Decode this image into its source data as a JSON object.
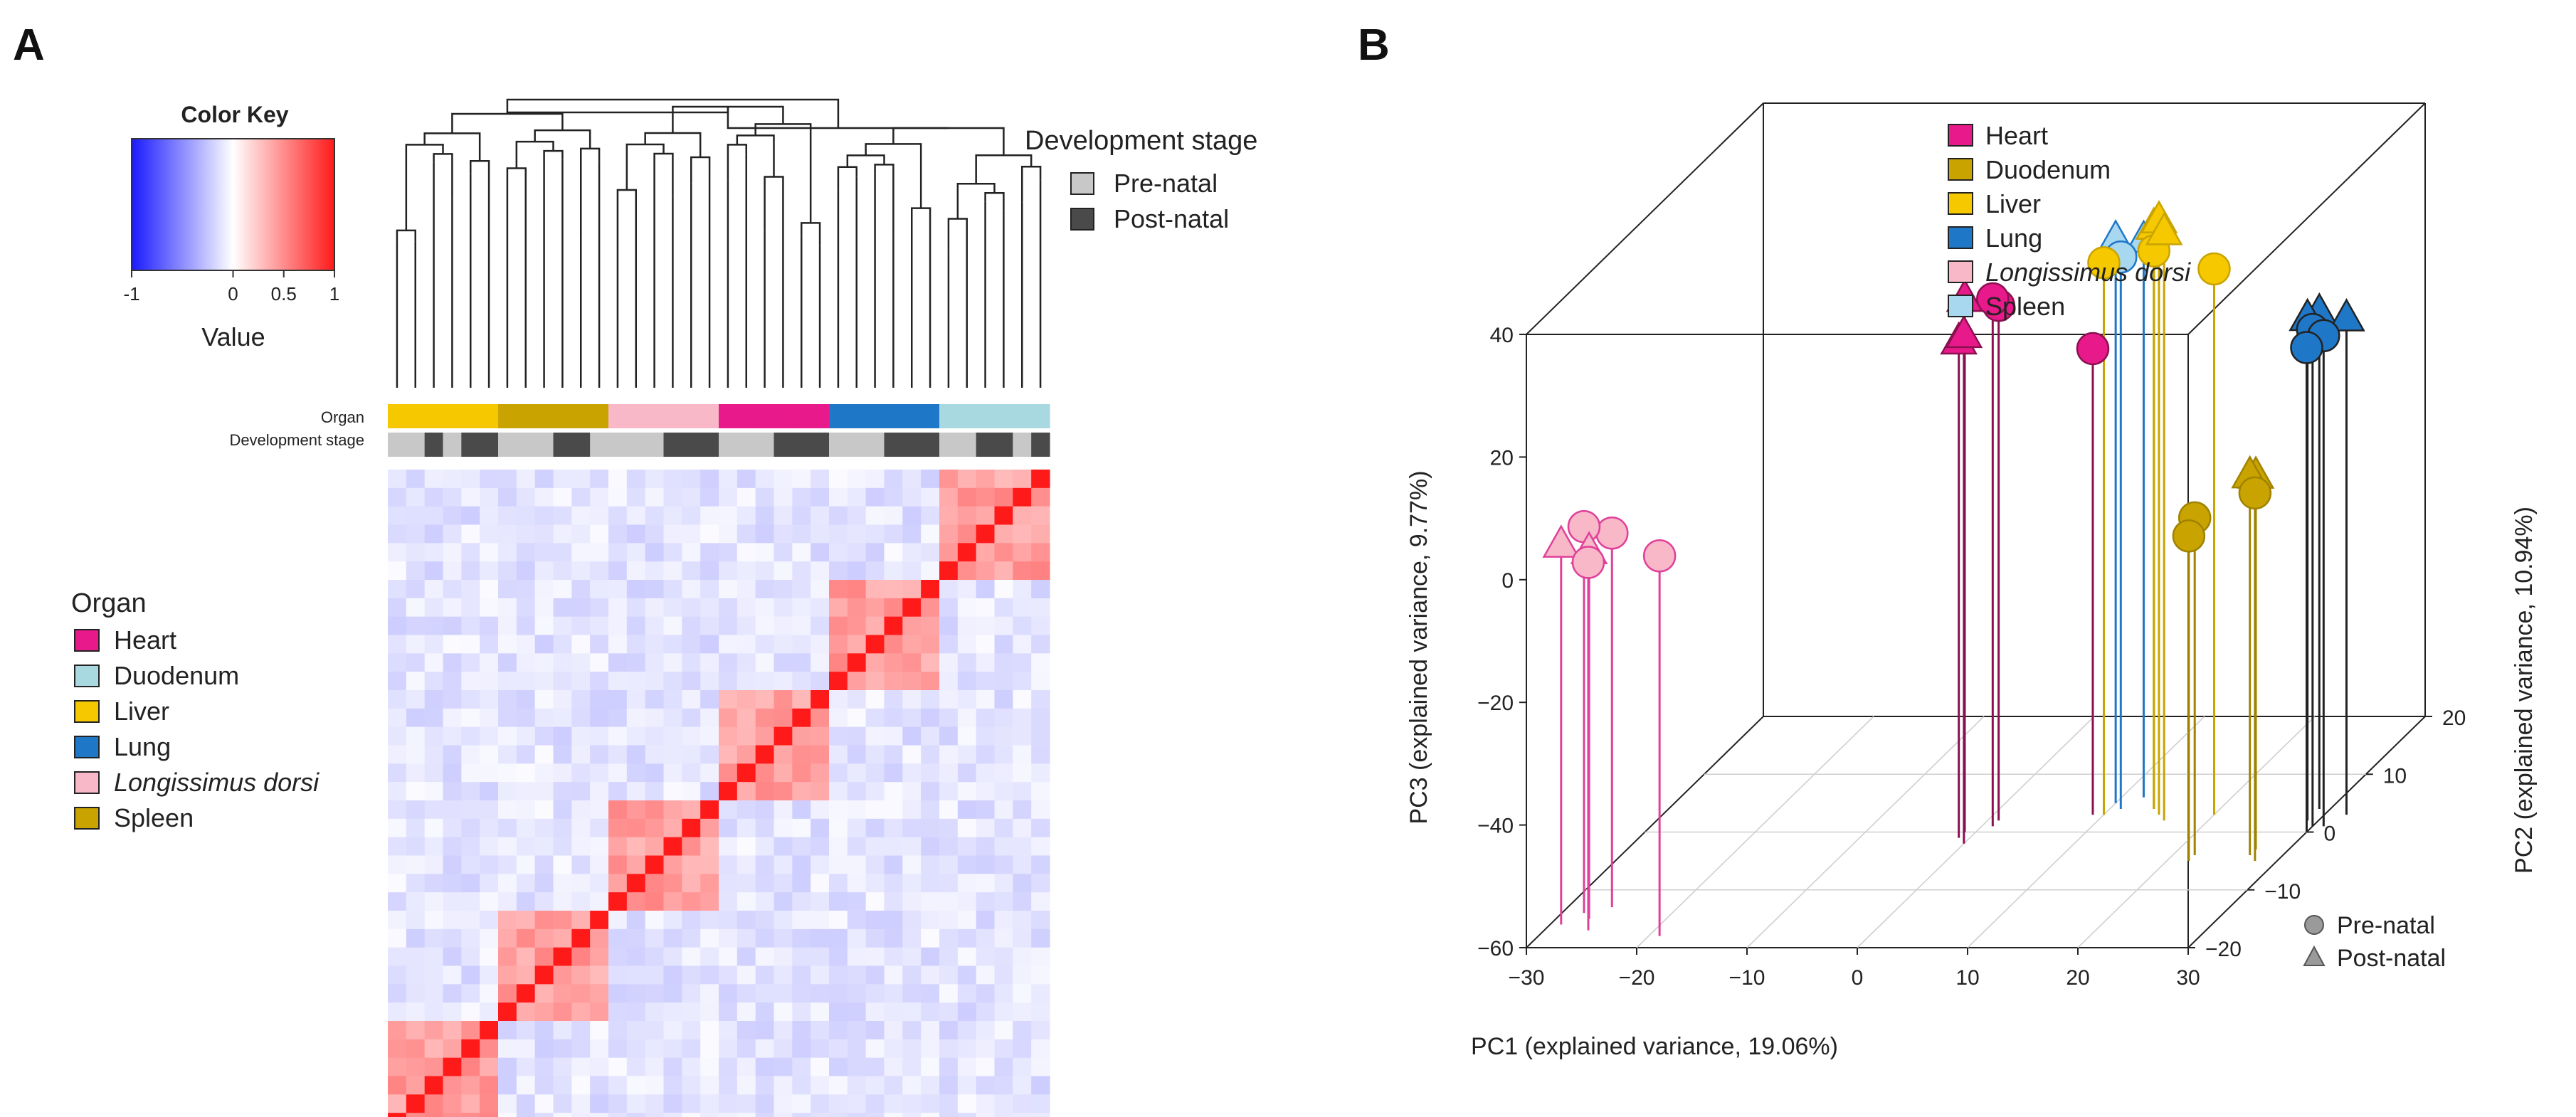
{
  "panel_a_label": "A",
  "panel_b_label": "B",
  "chart_data": [
    {
      "type": "heatmap",
      "title": "",
      "color_key": {
        "title": "Color Key",
        "label": "Value",
        "ticks": [
          "-1",
          "0",
          "0.5",
          "1"
        ],
        "tick_values": [
          -1,
          0,
          0.5,
          1
        ],
        "colors": [
          "#1a1aff",
          "#ffffff",
          "#ff1a1a"
        ],
        "range": [
          -1,
          1
        ]
      },
      "annotation_rows": {
        "organ": "Organ",
        "stage": "Development stage"
      },
      "organ_legend": {
        "title": "Organ",
        "items": [
          {
            "name": "Heart",
            "color": "#e8198b",
            "italic": false
          },
          {
            "name": "Duodenum",
            "color": "#a8d8e0",
            "italic": false
          },
          {
            "name": "Liver",
            "color": "#f5c800",
            "italic": false
          },
          {
            "name": "Lung",
            "color": "#1f77c8",
            "italic": false
          },
          {
            "name": "Longissimus dorsi",
            "color": "#f8b8c8",
            "italic": true
          },
          {
            "name": "Spleen",
            "color": "#c9a400",
            "italic": false
          }
        ]
      },
      "stage_legend": {
        "title": "Development stage",
        "items": [
          {
            "name": "Pre-natal",
            "color": "#c8c8c8"
          },
          {
            "name": "Post-natal",
            "color": "#4a4a4a"
          }
        ]
      },
      "column_organ_blocks": [
        {
          "organ": "Liver",
          "color": "#f5c800",
          "n": 6
        },
        {
          "organ": "Spleen",
          "color": "#c9a400",
          "n": 6
        },
        {
          "organ": "Longissimus dorsi",
          "color": "#f8b8c8",
          "n": 6
        },
        {
          "organ": "Heart",
          "color": "#e8198b",
          "n": 6
        },
        {
          "organ": "Lung",
          "color": "#1f77c8",
          "n": 6
        },
        {
          "organ": "Duodenum",
          "color": "#a8d8e0",
          "n": 6
        }
      ],
      "column_stages": [
        "Pre-natal",
        "Pre-natal",
        "Post-natal",
        "Pre-natal",
        "Post-natal",
        "Post-natal",
        "Pre-natal",
        "Pre-natal",
        "Pre-natal",
        "Post-natal",
        "Post-natal",
        "Pre-natal",
        "Pre-natal",
        "Pre-natal",
        "Pre-natal",
        "Post-natal",
        "Post-natal",
        "Post-natal",
        "Pre-natal",
        "Pre-natal",
        "Pre-natal",
        "Post-natal",
        "Post-natal",
        "Post-natal",
        "Pre-natal",
        "Pre-natal",
        "Pre-natal",
        "Post-natal",
        "Post-natal",
        "Post-natal",
        "Pre-natal",
        "Pre-natal",
        "Post-natal",
        "Post-natal",
        "Pre-natal",
        "Post-natal"
      ],
      "n_samples": 36,
      "within_organ_correlation": 0.45,
      "between_organ_correlation": -0.12,
      "diagonal_value": 1
    },
    {
      "type": "scatter",
      "subtype": "3d-scatter",
      "xlabel": "PC1 (explained variance, 19.06%)",
      "ylabel": "PC3 (explained variance, 9.77%)",
      "zlabel": "PC2 (explained variance, 10.94%)",
      "x_ticks": [
        "−30",
        "−20",
        "−10",
        "0",
        "10",
        "20",
        "30"
      ],
      "x_range": [
        -30,
        30
      ],
      "y_ticks": [
        "−60",
        "−40",
        "−20",
        "0",
        "20",
        "40"
      ],
      "y_range": [
        -60,
        40
      ],
      "z_ticks": [
        "−20",
        "−10",
        "0",
        "10",
        "20"
      ],
      "z_range": [
        -20,
        20
      ],
      "legend": [
        {
          "name": "Heart",
          "color": "#e8198b",
          "italic": false
        },
        {
          "name": "Duodenum",
          "color": "#c9a400",
          "italic": false
        },
        {
          "name": "Liver",
          "color": "#f5c800",
          "italic": false
        },
        {
          "name": "Lung",
          "color": "#1f77c8",
          "italic": false
        },
        {
          "name": "Longissimus dorsi",
          "color": "#f8b8c8",
          "italic": true
        },
        {
          "name": "Spleen",
          "color": "#a8d8f0",
          "italic": false
        }
      ],
      "shape_legend": [
        {
          "name": "Pre-natal",
          "shape": "circle"
        },
        {
          "name": "Post-natal",
          "shape": "triangle"
        }
      ],
      "series": [
        {
          "name": "Longissimus dorsi",
          "color": "#f8b8c8",
          "stem": "#e0409a",
          "points": [
            {
              "x": -29,
              "y": 2,
              "z": -16,
              "shape": "triangle"
            },
            {
              "x": -28,
              "y": 3,
              "z": -14,
              "shape": "circle"
            },
            {
              "x": -27,
              "y": 0,
              "z": -15,
              "shape": "triangle"
            },
            {
              "x": -26,
              "y": 1,
              "z": -13,
              "shape": "circle"
            },
            {
              "x": -26,
              "y": 0,
              "z": -17,
              "shape": "circle"
            },
            {
              "x": -19,
              "y": 2,
              "z": -18,
              "shape": "circle"
            }
          ]
        },
        {
          "name": "Heart",
          "color": "#e8198b",
          "stem": "#8b1050",
          "points": [
            {
              "x": -1,
              "y": 27,
              "z": 0,
              "shape": "triangle"
            },
            {
              "x": -1,
              "y": 21,
              "z": -1,
              "shape": "triangle"
            },
            {
              "x": 0,
              "y": 23,
              "z": -2,
              "shape": "triangle"
            },
            {
              "x": 1,
              "y": 26,
              "z": 1,
              "shape": "circle"
            },
            {
              "x": 1,
              "y": 24,
              "z": 2,
              "shape": "circle"
            },
            {
              "x": 9,
              "y": 16,
              "z": 3,
              "shape": "circle"
            }
          ]
        },
        {
          "name": "Spleen",
          "color": "#a8d8f0",
          "stem": "#1f77c8",
          "points": [
            {
              "x": 10,
              "y": 32,
              "z": 5,
              "shape": "triangle"
            },
            {
              "x": 11,
              "y": 30,
              "z": 4,
              "shape": "circle"
            },
            {
              "x": 12,
              "y": 31,
              "z": 6,
              "shape": "triangle"
            }
          ]
        },
        {
          "name": "Liver",
          "color": "#f5c800",
          "stem": "#c9a400",
          "points": [
            {
              "x": 10,
              "y": 30,
              "z": 3,
              "shape": "circle"
            },
            {
              "x": 14,
              "y": 35,
              "z": 4,
              "shape": "triangle"
            },
            {
              "x": 15,
              "y": 37,
              "z": 3,
              "shape": "triangle"
            },
            {
              "x": 16,
              "y": 36,
              "z": 2,
              "shape": "triangle"
            },
            {
              "x": 14,
              "y": 31,
              "z": 4,
              "shape": "circle"
            },
            {
              "x": 20,
              "y": 29,
              "z": 3,
              "shape": "circle"
            }
          ]
        },
        {
          "name": "Duodenum",
          "color": "#c9a400",
          "stem": "#a08200",
          "points": [
            {
              "x": 22,
              "y": -5,
              "z": -4,
              "shape": "circle"
            },
            {
              "x": 22,
              "y": -7,
              "z": -5,
              "shape": "circle"
            },
            {
              "x": 27,
              "y": 2,
              "z": -4,
              "shape": "triangle"
            },
            {
              "x": 27,
              "y": 1,
              "z": -3,
              "shape": "triangle"
            },
            {
              "x": 28,
              "y": 0,
              "z": -5,
              "shape": "circle"
            }
          ]
        },
        {
          "name": "Lung",
          "color": "#1f77c8",
          "stem": "#222222",
          "points": [
            {
              "x": 29,
              "y": 22,
              "z": 2,
              "shape": "triangle"
            },
            {
              "x": 30,
              "y": 21,
              "z": 1,
              "shape": "circle"
            },
            {
              "x": 31,
              "y": 20,
              "z": 1,
              "shape": "circle"
            },
            {
              "x": 30,
              "y": 19,
              "z": 0,
              "shape": "circle"
            },
            {
              "x": 32,
              "y": 21,
              "z": 3,
              "shape": "triangle"
            },
            {
              "x": 29,
              "y": 21,
              "z": 4,
              "shape": "triangle"
            }
          ]
        }
      ]
    }
  ]
}
